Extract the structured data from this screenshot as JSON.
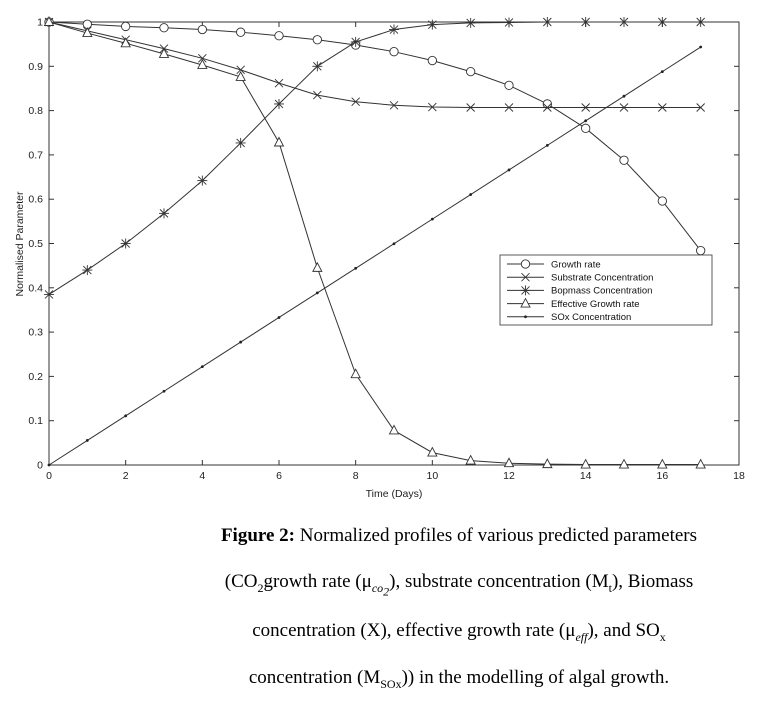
{
  "chart_data": {
    "type": "line",
    "title": "",
    "xlabel": "Time (Days)",
    "ylabel": "Normalised Parameter",
    "xlim": [
      0,
      18
    ],
    "ylim": [
      0,
      1
    ],
    "xticks": [
      0,
      2,
      4,
      6,
      8,
      10,
      12,
      14,
      16,
      18
    ],
    "yticks": [
      0,
      0.1,
      0.2,
      0.3,
      0.4,
      0.5,
      0.6,
      0.7,
      0.8,
      0.9,
      1
    ],
    "grid": false,
    "legend_position": "right-middle",
    "x": [
      0,
      1,
      2,
      3,
      4,
      5,
      6,
      7,
      8,
      9,
      10,
      11,
      12,
      13,
      14,
      15,
      16,
      17
    ],
    "series": [
      {
        "name": "Growth rate",
        "marker": "circle",
        "values": [
          1.0,
          0.995,
          0.99,
          0.987,
          0.983,
          0.977,
          0.969,
          0.96,
          0.948,
          0.933,
          0.913,
          0.888,
          0.857,
          0.815,
          0.76,
          0.688,
          0.596,
          0.484
        ]
      },
      {
        "name": "Substrate Concentration",
        "marker": "x",
        "values": [
          1.0,
          0.98,
          0.96,
          0.94,
          0.918,
          0.892,
          0.862,
          0.835,
          0.82,
          0.812,
          0.808,
          0.807,
          0.807,
          0.807,
          0.807,
          0.807,
          0.807,
          0.807
        ]
      },
      {
        "name": "Bopmass Concentration",
        "marker": "star",
        "values": [
          0.385,
          0.44,
          0.5,
          0.568,
          0.642,
          0.727,
          0.815,
          0.9,
          0.955,
          0.983,
          0.994,
          0.998,
          0.999,
          1.0,
          1.0,
          1.0,
          1.0,
          1.0
        ]
      },
      {
        "name": "Effective Growth rate",
        "marker": "triangle",
        "values": [
          1.0,
          0.975,
          0.952,
          0.928,
          0.903,
          0.876,
          0.728,
          0.445,
          0.205,
          0.078,
          0.028,
          0.01,
          0.004,
          0.002,
          0.001,
          0.001,
          0.001,
          0.001
        ]
      },
      {
        "name": "SOx Concentration",
        "marker": "dot",
        "values": [
          0.0,
          0.0555,
          0.111,
          0.1665,
          0.222,
          0.2775,
          0.333,
          0.3885,
          0.444,
          0.4995,
          0.555,
          0.6105,
          0.666,
          0.7215,
          0.777,
          0.8325,
          0.888,
          0.9435
        ]
      }
    ]
  },
  "caption": {
    "lead": "Figure 2:",
    "line1_rest": "Normalized profiles of various predicted parameters",
    "line2_a": "(CO",
    "line2_sub1": "2",
    "line2_b": "growth rate (μ",
    "line2_sub2": "co",
    "line2_sub2b": "2",
    "line2_c": "), substrate concentration (M",
    "line2_sub3": "t",
    "line2_d": "), Biomass",
    "line3_a": "concentration (X), effective growth rate (μ",
    "line3_sub": "eff",
    "line3_b": "), and SO",
    "line3_sub2": "x",
    "line4_a": "concentration (M",
    "line4_sub": "SOx",
    "line4_b": ")) in the modelling of algal growth."
  }
}
